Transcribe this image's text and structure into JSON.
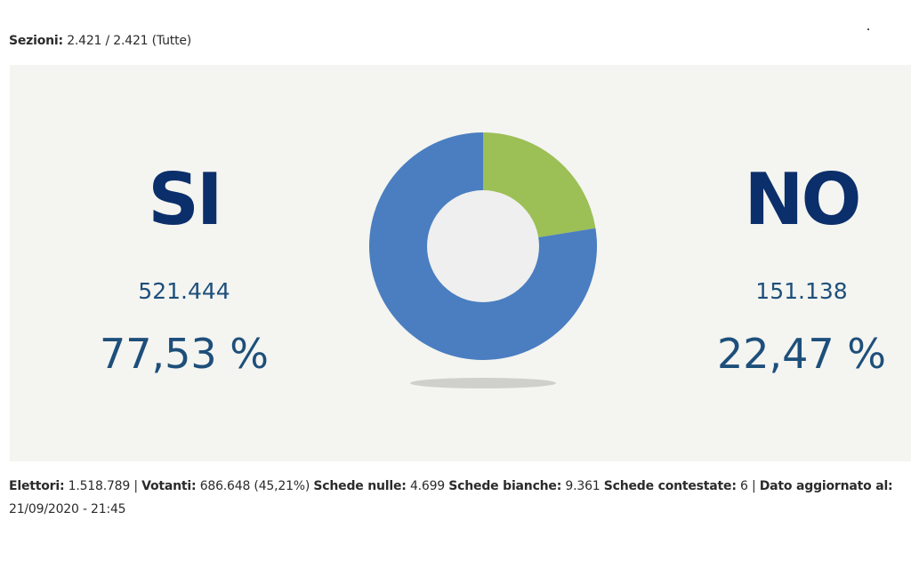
{
  "header": {
    "sezioni_label": "Sezioni:",
    "sezioni_value": "2.421 / 2.421 (Tutte)"
  },
  "results": {
    "si": {
      "label": "SI",
      "votes": "521.444",
      "percent": "77,53 %"
    },
    "no": {
      "label": "NO",
      "votes": "151.138",
      "percent": "22,47 %"
    }
  },
  "colors": {
    "si": "#4a7ec0",
    "no": "#9cbf56",
    "hole": "#efefef",
    "title_dark": "#0b2f6b",
    "value_blue": "#1d4f7a"
  },
  "chart_data": {
    "type": "pie",
    "donut": true,
    "categories": [
      "SI",
      "NO"
    ],
    "values": [
      77.53,
      22.47
    ],
    "votes": [
      521444,
      151138
    ],
    "title": "",
    "legend": "side-labels"
  },
  "footer": {
    "elettori_label": "Elettori:",
    "elettori_value": "1.518.789 |",
    "votanti_label": "Votanti:",
    "votanti_value": "686.648 (45,21%)",
    "nulle_label": "Schede nulle:",
    "nulle_value": "4.699",
    "bianche_label": "Schede bianche:",
    "bianche_value": "9.361",
    "contestate_label": "Schede contestate:",
    "contestate_value": "6 |",
    "aggiornato_label": "Dato aggiornato al:",
    "aggiornato_value": "21/09/2020 - 21:45"
  }
}
